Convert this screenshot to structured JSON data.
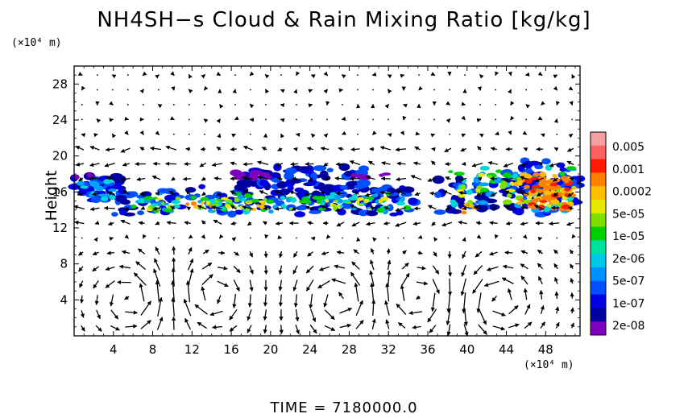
{
  "title": "NH4SH−s Cloud & Rain Mixing Ratio [kg/kg]",
  "footer": "TIME  =  7180000.0",
  "chart_data": {
    "type": "heatmap",
    "title": "NH4SH−s Cloud & Rain Mixing Ratio [kg/kg]",
    "ylabel": "Height",
    "xlabel": "",
    "x_unit": "(×10⁴ m)",
    "y_unit": "(×10⁴ m)",
    "xlim": [
      0,
      51.5
    ],
    "ylim": [
      0,
      30
    ],
    "x_ticks": [
      4,
      8,
      12,
      16,
      20,
      24,
      28,
      32,
      36,
      40,
      44,
      48
    ],
    "y_ticks": [
      4,
      8,
      12,
      16,
      20,
      24,
      28
    ],
    "colorbar": {
      "labels": [
        "0.005",
        "0.001",
        "0.0002",
        "5e-05",
        "1e-05",
        "2e-06",
        "5e-07",
        "1e-07",
        "2e-08"
      ],
      "colors": [
        "#f5a0a0",
        "#ff6060",
        "#ff1a00",
        "#ff7f00",
        "#ffbf00",
        "#e8e800",
        "#7fe000",
        "#00d000",
        "#00e0a0",
        "#00c8e8",
        "#0090ff",
        "#0050ff",
        "#0000e0",
        "#0000a0",
        "#8000c0"
      ]
    },
    "cloud_regions": [
      {
        "x": [
          0,
          5
        ],
        "y": [
          14.5,
          18
        ],
        "max_level": "5e-05"
      },
      {
        "x": [
          4,
          35
        ],
        "y": [
          13,
          19
        ],
        "max_level": "0.0002"
      },
      {
        "x": [
          37,
          51.5
        ],
        "y": [
          12.5,
          20
        ],
        "max_level": "0.001"
      }
    ],
    "wind_vectors": "quiver overlay",
    "grid": true,
    "time": "7180000.0"
  }
}
